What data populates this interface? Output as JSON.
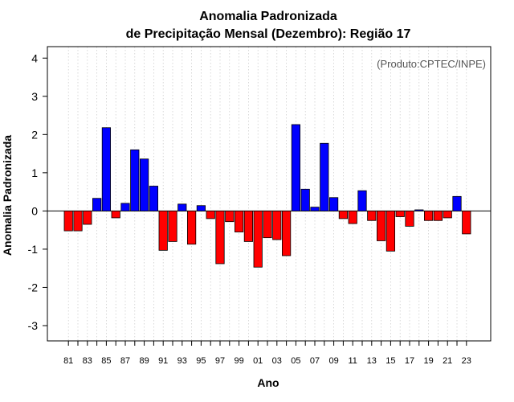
{
  "chart_data": {
    "type": "bar",
    "title_line1": "Anomalia Padronizada",
    "title_line2": "de Precipitação Mensal (Dezembro): Região 17",
    "xlabel": "Ano",
    "ylabel": "Anomalia Padronizada",
    "credit": "(Produto:CPTEC/INPE)",
    "ylim": [
      -3.4,
      4.3
    ],
    "yticks": [
      -3,
      -2,
      -1,
      0,
      1,
      2,
      3,
      4
    ],
    "xtick_labels": [
      "81",
      "83",
      "85",
      "87",
      "89",
      "91",
      "93",
      "95",
      "97",
      "99",
      "01",
      "03",
      "05",
      "07",
      "09",
      "11",
      "13",
      "15",
      "17",
      "19",
      "21",
      "23"
    ],
    "positive_color": "#0000ff",
    "negative_color": "#ff0000",
    "categories": [
      "1981",
      "1982",
      "1983",
      "1984",
      "1985",
      "1986",
      "1987",
      "1988",
      "1989",
      "1990",
      "1991",
      "1992",
      "1993",
      "1994",
      "1995",
      "1996",
      "1997",
      "1998",
      "1999",
      "2000",
      "2001",
      "2002",
      "2003",
      "2004",
      "2005",
      "2006",
      "2007",
      "2008",
      "2009",
      "2010",
      "2011",
      "2012",
      "2013",
      "2014",
      "2015",
      "2016",
      "2017",
      "2018",
      "2019",
      "2020",
      "2021",
      "2022",
      "2023"
    ],
    "values": [
      -0.52,
      -0.52,
      -0.35,
      0.33,
      2.18,
      -0.18,
      0.2,
      1.6,
      1.36,
      0.65,
      -1.03,
      -0.8,
      0.18,
      -0.87,
      0.14,
      -0.2,
      -1.38,
      -0.28,
      -0.55,
      -0.8,
      -1.47,
      -0.7,
      -0.75,
      -1.17,
      2.26,
      0.57,
      0.1,
      1.77,
      0.35,
      -0.2,
      -0.33,
      0.53,
      -0.25,
      -0.78,
      -1.05,
      -0.15,
      -0.4,
      0.03,
      -0.25,
      -0.25,
      -0.18,
      0.38,
      -0.6
    ]
  }
}
